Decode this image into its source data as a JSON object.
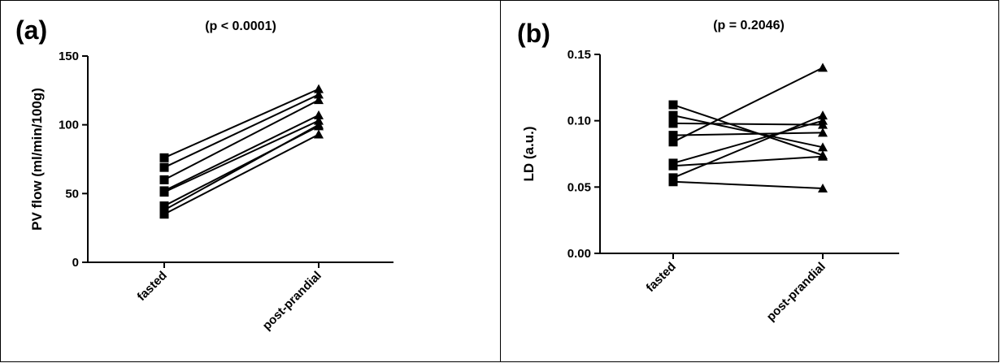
{
  "chart_data": [
    {
      "type": "line",
      "panel_label": "(a)",
      "title": "(p < 0.0001)",
      "xlabel": "",
      "ylabel": "PV flow (ml/min/100g)",
      "categories": [
        "fasted",
        "post-prandial"
      ],
      "ylim": [
        0,
        150
      ],
      "yticks": [
        "0",
        "50",
        "100",
        "150"
      ],
      "series": [
        {
          "values": [
            76,
            126
          ]
        },
        {
          "values": [
            69,
            122
          ]
        },
        {
          "values": [
            60,
            118
          ]
        },
        {
          "values": [
            52,
            107
          ]
        },
        {
          "values": [
            51,
            103
          ]
        },
        {
          "values": [
            41,
            99
          ]
        },
        {
          "values": [
            38,
            100
          ]
        },
        {
          "values": [
            35,
            93
          ]
        }
      ]
    },
    {
      "type": "line",
      "panel_label": "(b)",
      "title": "(p = 0.2046)",
      "xlabel": "",
      "ylabel": "LD (a.u.)",
      "categories": [
        "fasted",
        "post-prandial"
      ],
      "ylim": [
        0,
        0.15
      ],
      "yticks": [
        "0.00",
        "0.05",
        "0.10",
        "0.15"
      ],
      "series": [
        {
          "values": [
            0.112,
            0.074
          ]
        },
        {
          "values": [
            0.104,
            0.08
          ]
        },
        {
          "values": [
            0.098,
            0.097
          ]
        },
        {
          "values": [
            0.089,
            0.091
          ]
        },
        {
          "values": [
            0.084,
            0.14
          ]
        },
        {
          "values": [
            0.068,
            0.1
          ]
        },
        {
          "values": [
            0.066,
            0.073
          ]
        },
        {
          "values": [
            0.057,
            0.104
          ]
        },
        {
          "values": [
            0.054,
            0.049
          ]
        }
      ]
    }
  ]
}
